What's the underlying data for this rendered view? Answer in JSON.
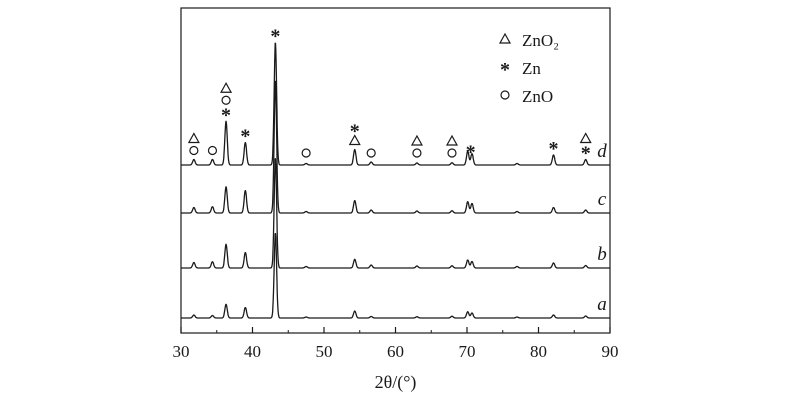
{
  "chart_data": {
    "type": "line",
    "xlabel": "2θ/(°)",
    "xlim": [
      30,
      90
    ],
    "x_ticks": [
      "30",
      "40",
      "50",
      "60",
      "70",
      "80",
      "90"
    ],
    "ylabel": "",
    "grid": false,
    "legend_position": "top-right",
    "legend": [
      {
        "symbol": "triangle",
        "label": "ZnO₂"
      },
      {
        "symbol": "asterisk",
        "label": "Zn"
      },
      {
        "symbol": "circle",
        "label": "ZnO"
      }
    ],
    "series": [
      {
        "name": "a",
        "peaks": [
          {
            "x": 31.8,
            "h": 0.12
          },
          {
            "x": 34.4,
            "h": 0.1
          },
          {
            "x": 36.3,
            "h": 0.55
          },
          {
            "x": 39.0,
            "h": 0.42
          },
          {
            "x": 43.2,
            "h": 3.4
          },
          {
            "x": 47.5,
            "h": 0.04
          },
          {
            "x": 54.3,
            "h": 0.28
          },
          {
            "x": 56.6,
            "h": 0.06
          },
          {
            "x": 63.0,
            "h": 0.05
          },
          {
            "x": 67.9,
            "h": 0.07
          },
          {
            "x": 70.1,
            "h": 0.25
          },
          {
            "x": 70.7,
            "h": 0.2
          },
          {
            "x": 77.0,
            "h": 0.04
          },
          {
            "x": 82.1,
            "h": 0.12
          },
          {
            "x": 86.6,
            "h": 0.08
          }
        ]
      },
      {
        "name": "b",
        "peaks": [
          {
            "x": 31.8,
            "h": 0.22
          },
          {
            "x": 34.4,
            "h": 0.25
          },
          {
            "x": 36.3,
            "h": 0.95
          },
          {
            "x": 39.0,
            "h": 0.62
          },
          {
            "x": 43.2,
            "h": 4.4
          },
          {
            "x": 47.5,
            "h": 0.06
          },
          {
            "x": 54.3,
            "h": 0.35
          },
          {
            "x": 56.6,
            "h": 0.12
          },
          {
            "x": 63.0,
            "h": 0.08
          },
          {
            "x": 67.9,
            "h": 0.09
          },
          {
            "x": 70.1,
            "h": 0.32
          },
          {
            "x": 70.7,
            "h": 0.26
          },
          {
            "x": 77.0,
            "h": 0.06
          },
          {
            "x": 82.1,
            "h": 0.2
          },
          {
            "x": 86.6,
            "h": 0.1
          }
        ]
      },
      {
        "name": "c",
        "peaks": [
          {
            "x": 31.8,
            "h": 0.22
          },
          {
            "x": 34.4,
            "h": 0.25
          },
          {
            "x": 36.3,
            "h": 1.05
          },
          {
            "x": 39.0,
            "h": 0.9
          },
          {
            "x": 43.2,
            "h": 5.3
          },
          {
            "x": 47.5,
            "h": 0.06
          },
          {
            "x": 54.3,
            "h": 0.5
          },
          {
            "x": 56.6,
            "h": 0.12
          },
          {
            "x": 63.0,
            "h": 0.08
          },
          {
            "x": 67.9,
            "h": 0.09
          },
          {
            "x": 70.1,
            "h": 0.45
          },
          {
            "x": 70.7,
            "h": 0.38
          },
          {
            "x": 77.0,
            "h": 0.06
          },
          {
            "x": 82.1,
            "h": 0.22
          },
          {
            "x": 86.6,
            "h": 0.12
          }
        ]
      },
      {
        "name": "d",
        "peaks": [
          {
            "x": 31.8,
            "h": 0.22
          },
          {
            "x": 34.4,
            "h": 0.22
          },
          {
            "x": 36.3,
            "h": 1.75
          },
          {
            "x": 39.0,
            "h": 0.9
          },
          {
            "x": 43.2,
            "h": 4.9
          },
          {
            "x": 47.5,
            "h": 0.06
          },
          {
            "x": 54.3,
            "h": 0.62
          },
          {
            "x": 56.6,
            "h": 0.12
          },
          {
            "x": 63.0,
            "h": 0.08
          },
          {
            "x": 67.9,
            "h": 0.09
          },
          {
            "x": 70.1,
            "h": 0.55
          },
          {
            "x": 70.7,
            "h": 0.45
          },
          {
            "x": 77.0,
            "h": 0.06
          },
          {
            "x": 82.1,
            "h": 0.4
          },
          {
            "x": 86.6,
            "h": 0.22
          }
        ]
      }
    ],
    "peak_annotations": [
      {
        "x": 31.8,
        "phases": [
          "triangle",
          "circle"
        ]
      },
      {
        "x": 34.4,
        "phases": [
          "circle"
        ]
      },
      {
        "x": 36.3,
        "phases": [
          "triangle",
          "circle",
          "asterisk"
        ]
      },
      {
        "x": 39.0,
        "phases": [
          "asterisk"
        ]
      },
      {
        "x": 43.2,
        "phases": [
          "asterisk"
        ]
      },
      {
        "x": 47.5,
        "phases": [
          "circle"
        ]
      },
      {
        "x": 54.3,
        "phases": [
          "asterisk",
          "triangle"
        ]
      },
      {
        "x": 56.6,
        "phases": [
          "circle"
        ]
      },
      {
        "x": 63.0,
        "phases": [
          "triangle",
          "circle"
        ]
      },
      {
        "x": 67.9,
        "phases": [
          "triangle",
          "circle"
        ]
      },
      {
        "x": 70.5,
        "phases": [
          "asterisk"
        ]
      },
      {
        "x": 82.1,
        "phases": [
          "asterisk"
        ]
      },
      {
        "x": 86.6,
        "phases": [
          "triangle",
          "asterisk"
        ]
      }
    ],
    "colors": {
      "line": "#1a1a1a",
      "background": "#ffffff"
    }
  }
}
